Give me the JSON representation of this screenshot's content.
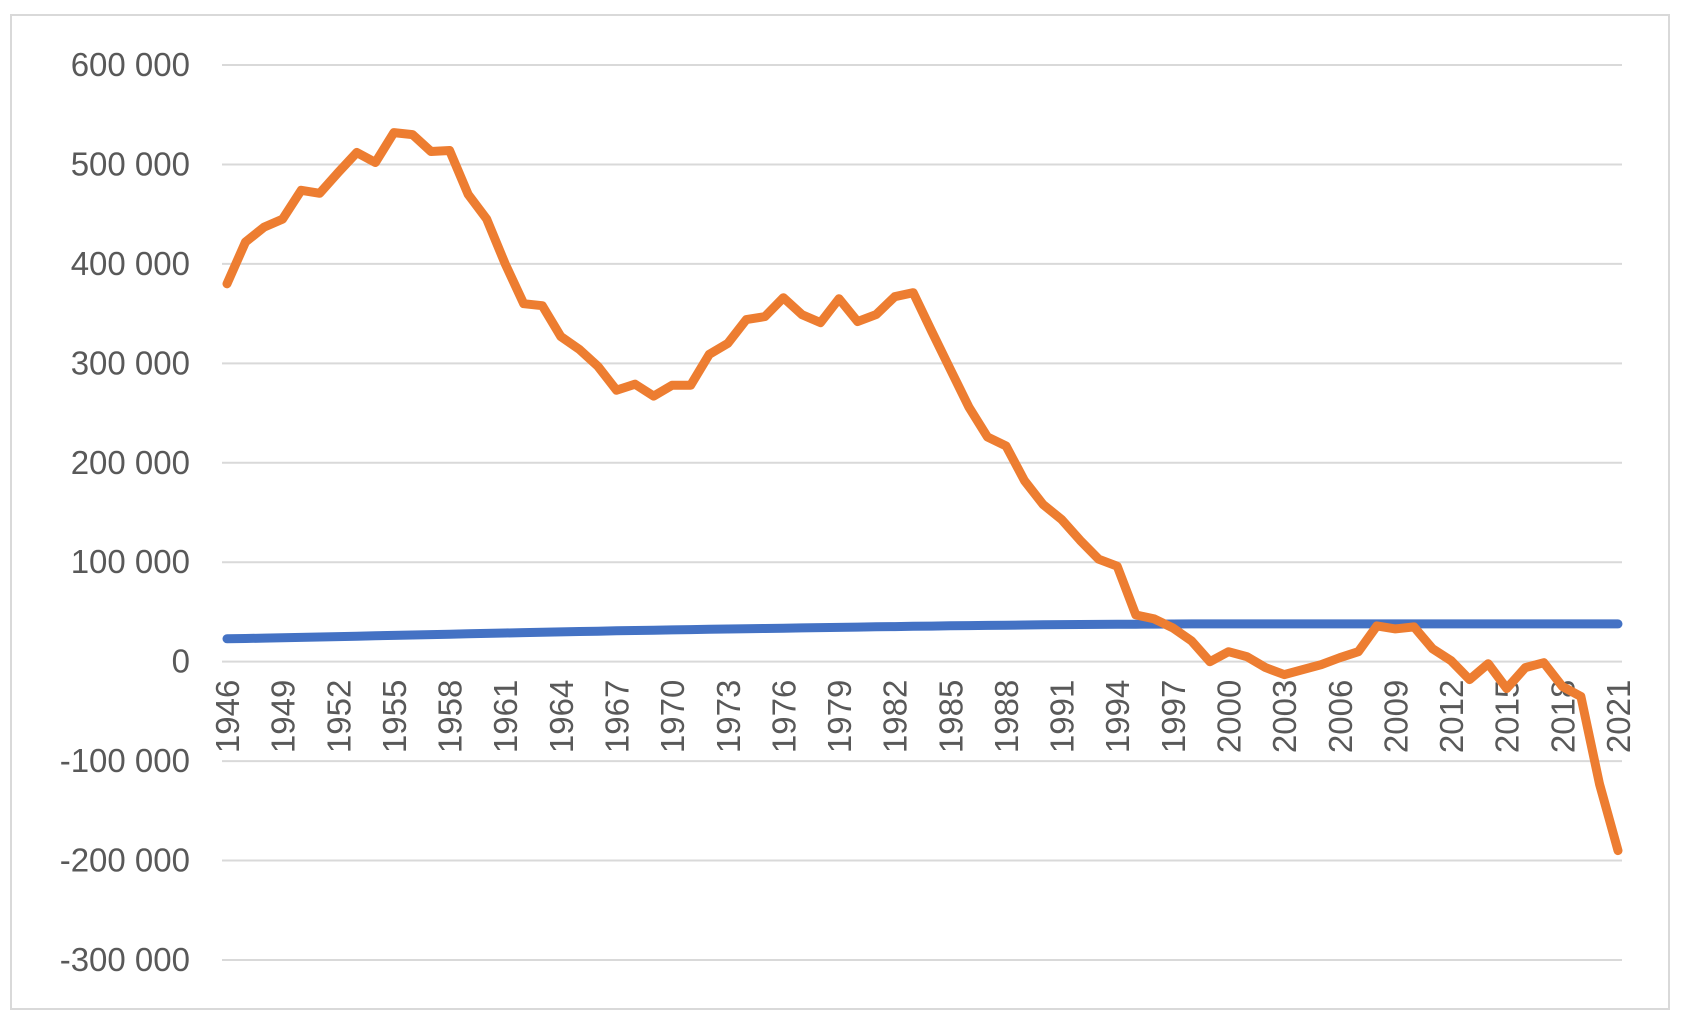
{
  "chart_data": {
    "type": "line",
    "title": "",
    "xlabel": "",
    "ylabel": "",
    "ylim": [
      -300000,
      600000
    ],
    "yticks": [
      -300000,
      -200000,
      -100000,
      0,
      100000,
      200000,
      300000,
      400000,
      500000,
      600000
    ],
    "ytick_labels": [
      "-300 000",
      "-200 000",
      "-100 000",
      "0",
      "100 000",
      "200 000",
      "300 000",
      "400 000",
      "500 000",
      "600 000"
    ],
    "xtick_labels": [
      "1946",
      "1949",
      "1952",
      "1955",
      "1958",
      "1961",
      "1964",
      "1967",
      "1970",
      "1973",
      "1976",
      "1979",
      "1982",
      "1985",
      "1988",
      "1991",
      "1994",
      "1997",
      "2000",
      "2003",
      "2006",
      "2009",
      "2012",
      "2015",
      "2018",
      "2021"
    ],
    "x": [
      1946,
      1947,
      1948,
      1949,
      1950,
      1951,
      1952,
      1953,
      1954,
      1955,
      1956,
      1957,
      1958,
      1959,
      1960,
      1961,
      1962,
      1963,
      1964,
      1965,
      1966,
      1967,
      1968,
      1969,
      1970,
      1971,
      1972,
      1973,
      1974,
      1975,
      1976,
      1977,
      1978,
      1979,
      1980,
      1981,
      1982,
      1983,
      1984,
      1985,
      1986,
      1987,
      1988,
      1989,
      1990,
      1991,
      1992,
      1993,
      1994,
      1995,
      1996,
      1997,
      1998,
      1999,
      2000,
      2001,
      2002,
      2003,
      2004,
      2005,
      2006,
      2007,
      2008,
      2009,
      2010,
      2011,
      2012,
      2013,
      2014,
      2015,
      2016,
      2017,
      2018,
      2019,
      2020,
      2021
    ],
    "grid": true,
    "legend": "none",
    "series": [
      {
        "color": "#ED7D31",
        "values": [
          380000,
          422000,
          437000,
          445000,
          474000,
          471000,
          492000,
          512000,
          502000,
          532000,
          530000,
          513000,
          514000,
          470000,
          445000,
          400000,
          360000,
          358000,
          327000,
          314000,
          297000,
          273000,
          279000,
          267000,
          278000,
          278000,
          309000,
          320000,
          344000,
          347000,
          366000,
          349000,
          341000,
          365000,
          342000,
          349000,
          367000,
          371000,
          332000,
          294000,
          256000,
          226000,
          217000,
          182000,
          158000,
          143000,
          122000,
          103000,
          96000,
          47000,
          43000,
          34000,
          21000,
          0,
          10000,
          5000,
          -6000,
          -13000,
          -8000,
          -3000,
          4000,
          10000,
          36000,
          33000,
          35000,
          13000,
          1000,
          -18000,
          -2000,
          -27000,
          -6000,
          -1000,
          -25000,
          -35000,
          -123000,
          -190000
        ]
      },
      {
        "color": "#4472C4",
        "values": [
          23000,
          23300,
          23700,
          24000,
          24400,
          24800,
          25200,
          25600,
          26000,
          26400,
          26800,
          27200,
          27600,
          28000,
          28400,
          28800,
          29200,
          29500,
          29900,
          30300,
          30600,
          31000,
          31300,
          31600,
          31900,
          32200,
          32500,
          32800,
          33100,
          33400,
          33700,
          34000,
          34300,
          34500,
          34800,
          35100,
          35300,
          35600,
          35800,
          36100,
          36300,
          36500,
          36700,
          36900,
          37100,
          37300,
          37400,
          37500,
          37600,
          37700,
          37800,
          37900,
          38000,
          38000,
          38000,
          38000,
          38000,
          38000,
          38000,
          38000,
          38000,
          38000,
          38000,
          38000,
          38000,
          38000,
          38000,
          38000,
          38000,
          38000,
          38000,
          38000,
          38000,
          38000,
          38000,
          38000
        ]
      }
    ]
  }
}
